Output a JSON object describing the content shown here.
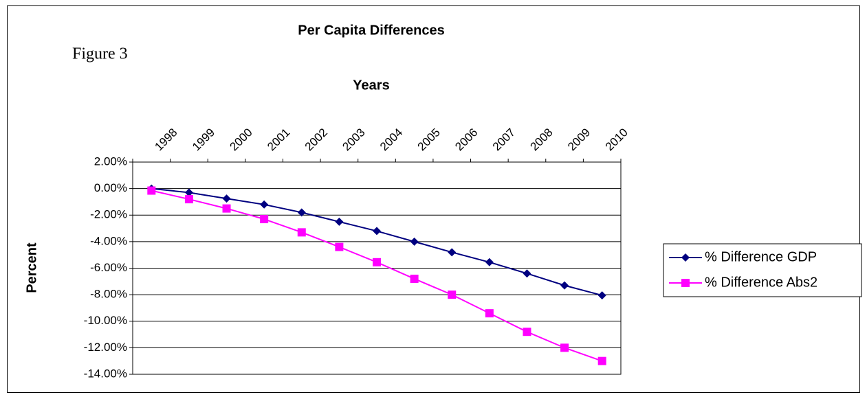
{
  "chart_data": {
    "type": "line",
    "title": "Per Capita Differences",
    "annotation": "Figure 3",
    "x_label": "Years",
    "y_label": "Percent",
    "categories": [
      "1998",
      "1999",
      "2000",
      "2001",
      "2002",
      "2003",
      "2004",
      "2005",
      "2006",
      "2007",
      "2008",
      "2009",
      "2010"
    ],
    "series": [
      {
        "name": "% Difference GDP",
        "color": "#000080",
        "marker": "diamond",
        "values": [
          0.0,
          -0.3,
          -0.75,
          -1.2,
          -1.8,
          -2.5,
          -3.2,
          -4.0,
          -4.8,
          -5.55,
          -6.4,
          -7.3,
          -8.05
        ]
      },
      {
        "name": "% Difference Abs2",
        "color": "#ff00ff",
        "marker": "square",
        "values": [
          -0.15,
          -0.8,
          -1.5,
          -2.3,
          -3.3,
          -4.4,
          -5.55,
          -6.8,
          -8.0,
          -9.4,
          -10.8,
          -12.0,
          -13.0
        ]
      }
    ],
    "ylim": [
      -14,
      2
    ],
    "yticks": [
      {
        "value": 2,
        "label": "2.00%"
      },
      {
        "value": 0,
        "label": "0.00%"
      },
      {
        "value": -2,
        "label": "-2.00%"
      },
      {
        "value": -4,
        "label": "-4.00%"
      },
      {
        "value": -6,
        "label": "-6.00%"
      },
      {
        "value": -8,
        "label": "-8.00%"
      },
      {
        "value": -10,
        "label": "-10.00%"
      },
      {
        "value": -12,
        "label": "-12.00%"
      },
      {
        "value": -14,
        "label": "-14.00%"
      }
    ],
    "grid": true,
    "legend": "right"
  }
}
